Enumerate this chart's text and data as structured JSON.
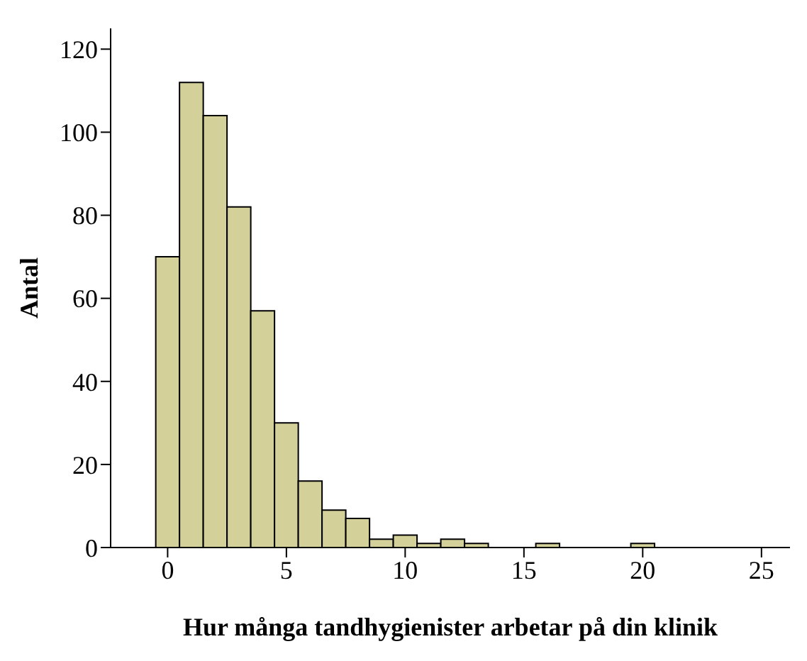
{
  "chart_data": {
    "type": "histogram",
    "xlabel": "Hur många tandhygienister arbetar på din klinik",
    "ylabel": "Antal",
    "bins": [
      -0.5,
      0.5,
      1.5,
      2.5,
      3.5,
      4.5,
      5.5,
      6.5,
      7.5,
      8.5,
      9.5,
      10.5,
      11.5,
      12.5,
      13.5,
      14.5,
      15.5,
      16.5,
      17.5,
      18.5,
      19.5,
      20.5
    ],
    "values": [
      70,
      112,
      104,
      82,
      57,
      30,
      16,
      9,
      7,
      2,
      3,
      1,
      2,
      1,
      0,
      0,
      1,
      0,
      0,
      0,
      1
    ],
    "color": "#d4d09a",
    "xlim": [
      -2.4,
      26.2
    ],
    "xticks": [
      0,
      5,
      10,
      15,
      20,
      25
    ],
    "ylim": [
      0,
      125
    ],
    "yticks": [
      0,
      20,
      40,
      60,
      80,
      100,
      120
    ],
    "grid": false
  }
}
